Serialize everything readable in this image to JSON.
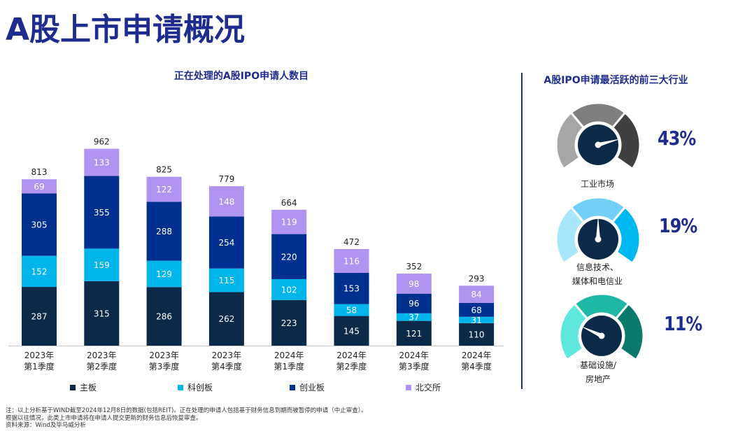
{
  "page": {
    "title": "A股上市申请概况"
  },
  "chart_title": "正在处理的A股IPO申请人数目",
  "chart_data": {
    "type": "bar",
    "stacked": true,
    "title": "正在处理的A股IPO申请人数目",
    "categories": [
      [
        "2023年",
        "第1季度"
      ],
      [
        "2023年",
        "第2季度"
      ],
      [
        "2023年",
        "第3季度"
      ],
      [
        "2023年",
        "第4季度"
      ],
      [
        "2024年",
        "第1季度"
      ],
      [
        "2024年",
        "第2季度"
      ],
      [
        "2024年",
        "第3季度"
      ],
      [
        "2024年",
        "第4季度"
      ]
    ],
    "totals": [
      813,
      962,
      825,
      779,
      664,
      472,
      352,
      293
    ],
    "series": [
      {
        "name": "主板",
        "color": "#0b2a4a",
        "values": [
          287,
          315,
          286,
          262,
          223,
          145,
          121,
          110
        ]
      },
      {
        "name": "科创板",
        "color": "#00b4ec",
        "values": [
          152,
          159,
          129,
          115,
          102,
          58,
          37,
          31
        ]
      },
      {
        "name": "创业板",
        "color": "#00308f",
        "values": [
          305,
          355,
          288,
          254,
          220,
          153,
          96,
          68
        ]
      },
      {
        "name": "北交所",
        "color": "#b194f2",
        "values": [
          69,
          133,
          122,
          148,
          119,
          116,
          98,
          84
        ]
      }
    ],
    "ylim": [
      0,
      1000
    ],
    "legend": "bottom"
  },
  "right_panel": {
    "title": "A股IPO申请最活跃的前三大行业",
    "industries": [
      {
        "name_lines": [
          "工业市场"
        ],
        "percent": "43%",
        "value": 43,
        "colors": [
          "#a6a6a6",
          "#7f7f7f",
          "#404040"
        ]
      },
      {
        "name_lines": [
          "信息技术、",
          "媒体和电信业"
        ],
        "percent": "19%",
        "value": 19,
        "colors": [
          "#a8e6fb",
          "#72d0f7",
          "#00b8f0"
        ]
      },
      {
        "name_lines": [
          "基础设施/",
          "房地产"
        ],
        "percent": "11%",
        "value": 11,
        "colors": [
          "#5ee8e0",
          "#1fb7a6",
          "#0a7a6c"
        ]
      }
    ]
  },
  "footnotes": [
    "注：以上分析基于WIND截至2024年12月8日的数据(包括REIT)。正在处理的申请人包括基于财务信息到期而被暂停的申请（中止审查）。",
    "根据以往情况，此类上市申请将在申请人提交更新的财务信息后恢复审查。",
    "资料来源：Wind及毕马威分析"
  ]
}
